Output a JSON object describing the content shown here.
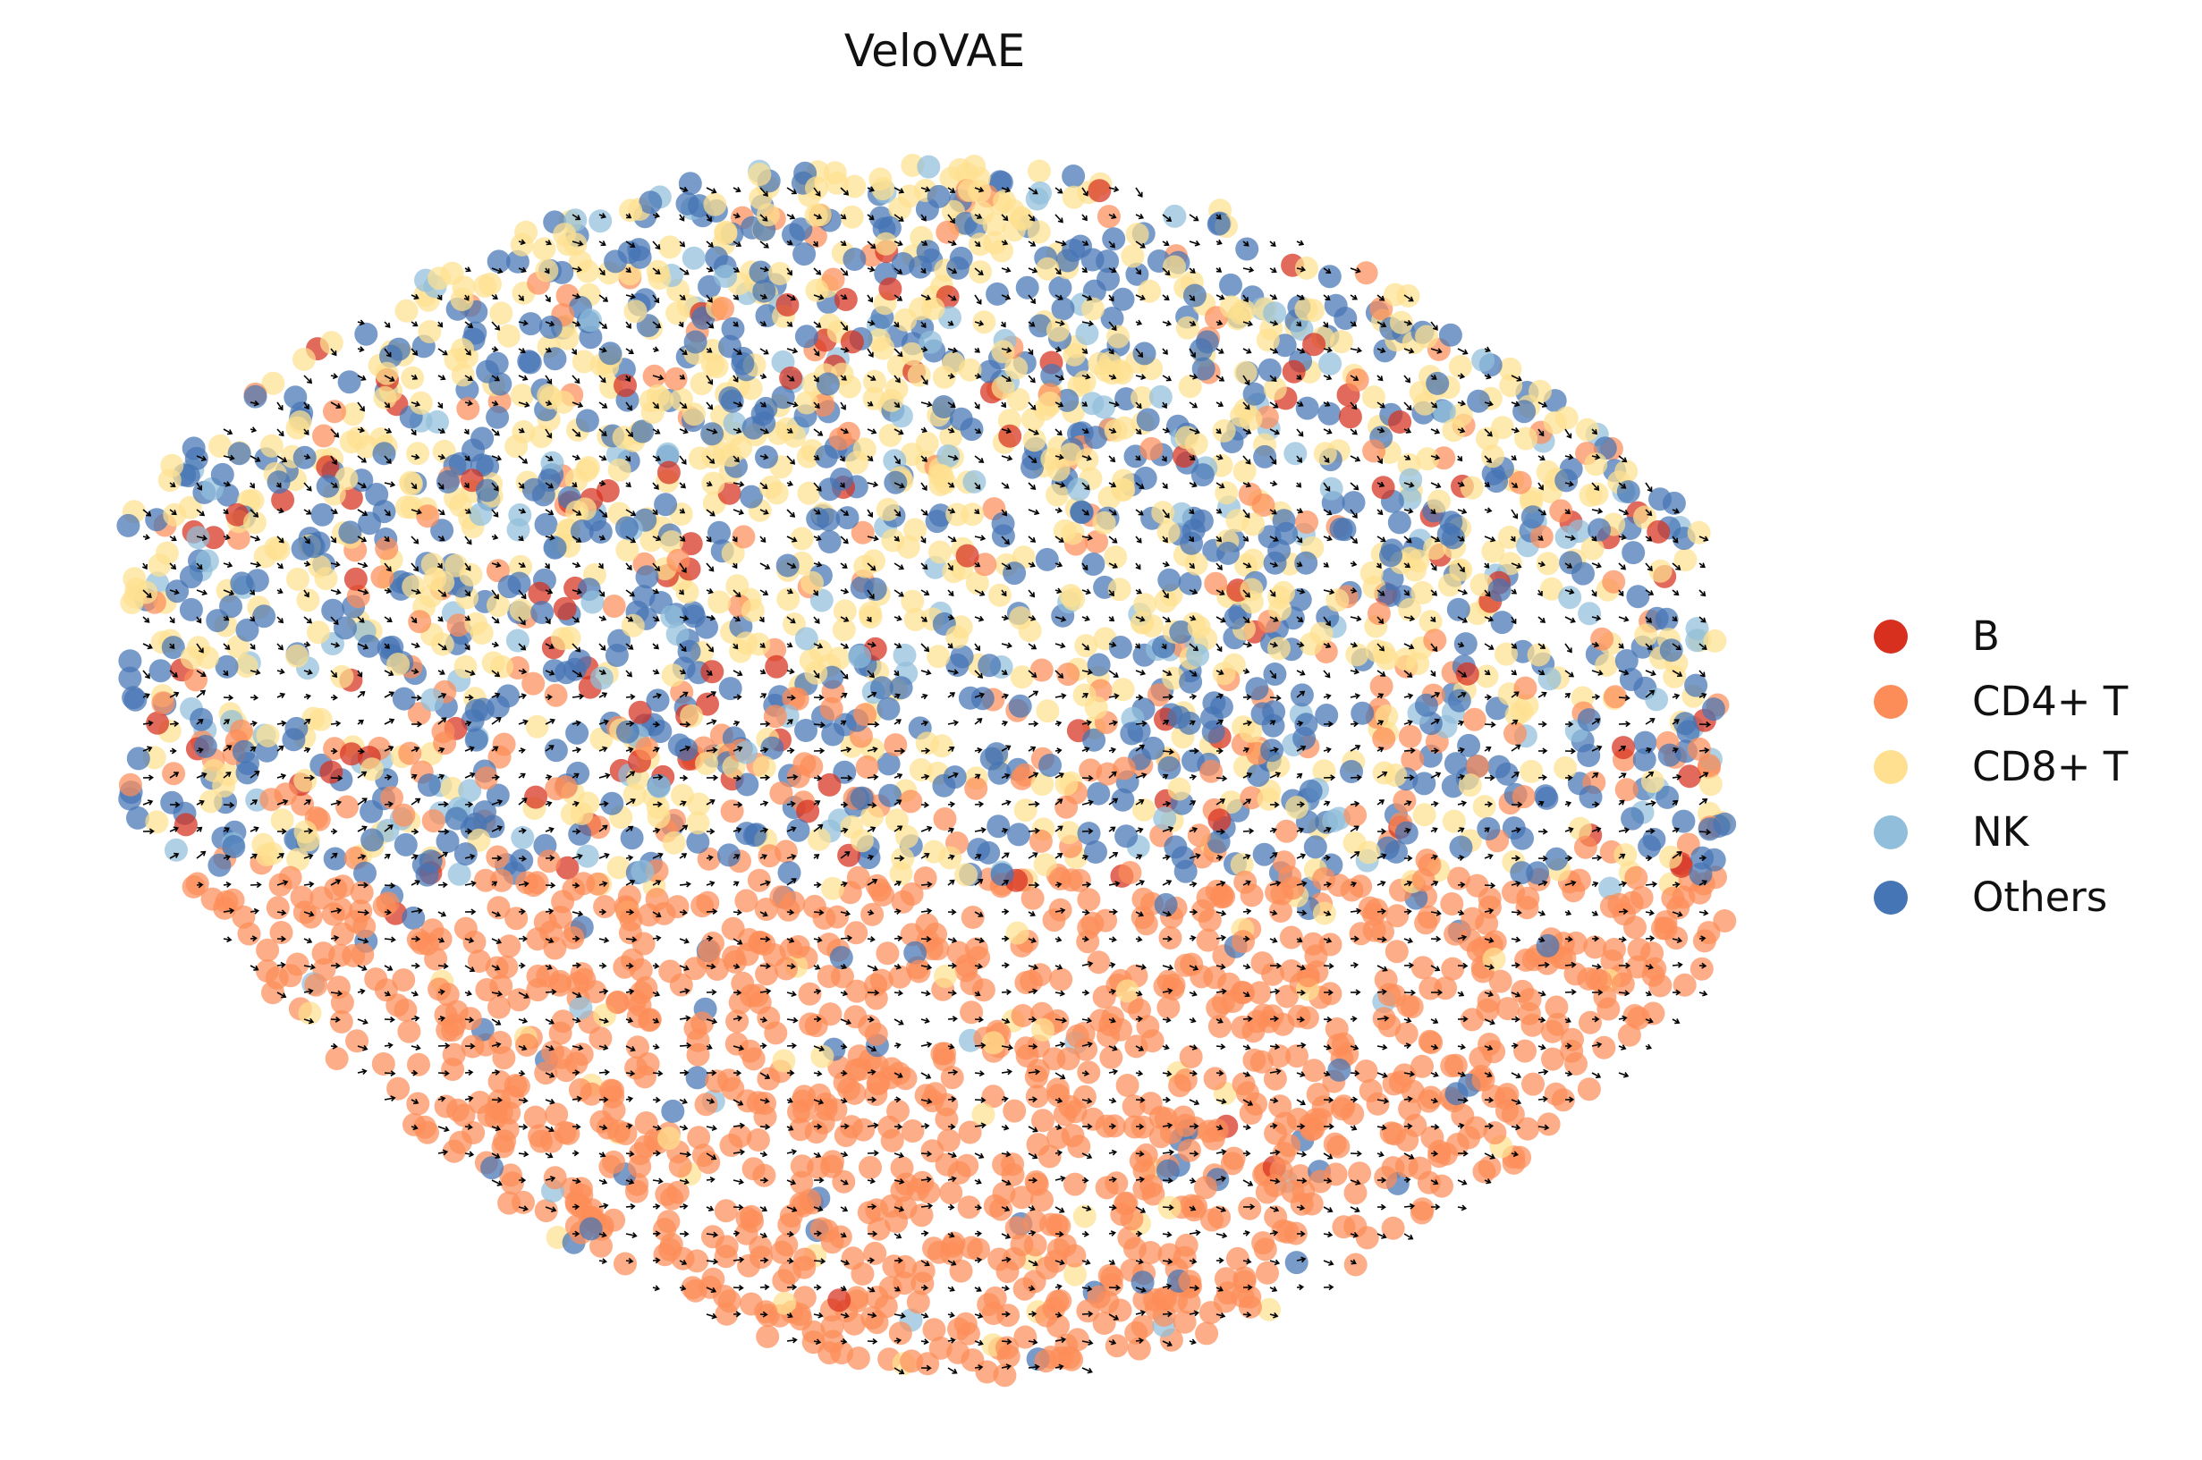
{
  "chart_data": {
    "type": "scatter",
    "title": "VeloVAE",
    "xlabel": "",
    "ylabel": "",
    "axes_visible": false,
    "grid": false,
    "legend": {
      "placement": "right",
      "entries": [
        {
          "name": "B",
          "color": "#d7301f"
        },
        {
          "name": "CD4+ T",
          "color": "#fc8d59"
        },
        {
          "name": "CD8+ T",
          "color": "#fee090"
        },
        {
          "name": "NK",
          "color": "#91bfdb"
        },
        {
          "name": "Others",
          "color": "#4575b4"
        }
      ]
    },
    "overlay": "velocity-stream-arrows",
    "series": [
      {
        "name": "B",
        "color": "#d7301f"
      },
      {
        "name": "CD4+ T",
        "color": "#fc8d59"
      },
      {
        "name": "CD8+ T",
        "color": "#fee090"
      },
      {
        "name": "NK",
        "color": "#91bfdb"
      },
      {
        "name": "Others",
        "color": "#4575b4"
      }
    ]
  }
}
